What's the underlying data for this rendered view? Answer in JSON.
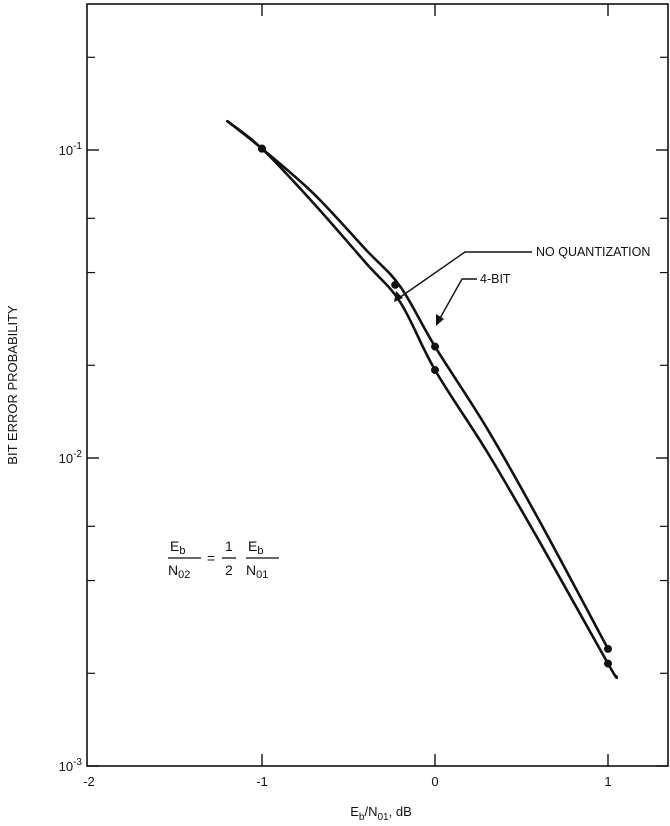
{
  "chart_data": {
    "type": "line",
    "title": "",
    "xlabel": {
      "main": "E",
      "sub1": "b",
      "mid": "/N",
      "sub2": "01",
      "tail": ", dB"
    },
    "ylabel": "BIT ERROR PROBABILITY",
    "xlim": [
      -2,
      1.25
    ],
    "ylim": [
      0.001,
      0.35
    ],
    "yscale": "log",
    "x_ticks": [
      "-2",
      "-1",
      "0",
      "1"
    ],
    "x_tick_values": [
      -2,
      -1,
      0,
      1
    ],
    "y_ticks": [
      {
        "value": 0.1,
        "base": "10",
        "exp": "-1"
      },
      {
        "value": 0.01,
        "base": "10",
        "exp": "-2"
      },
      {
        "value": 0.001,
        "base": "10",
        "exp": "-3"
      }
    ],
    "grid": false,
    "series": [
      {
        "name": "NO QUANTIZATION",
        "x": [
          -1.2,
          -1.0,
          -0.7,
          -0.4,
          -0.2,
          0.0,
          0.3,
          0.6,
          1.0,
          1.05
        ],
        "y": [
          0.124,
          0.101,
          0.067,
          0.043,
          0.032,
          0.0193,
          0.0105,
          0.0054,
          0.00215,
          0.00195
        ],
        "markers_x": [
          -1.0,
          0.0,
          1.0
        ],
        "markers_y": [
          0.101,
          0.0193,
          0.00215
        ]
      },
      {
        "name": "4-BIT",
        "x": [
          -1.2,
          -1.0,
          -0.7,
          -0.4,
          -0.2,
          0.0,
          0.3,
          0.6,
          1.0
        ],
        "y": [
          0.124,
          0.101,
          0.072,
          0.0475,
          0.036,
          0.023,
          0.0125,
          0.0063,
          0.0024
        ],
        "markers_x": [
          -1.0,
          -0.23,
          0.0,
          1.0
        ],
        "markers_y": [
          0.101,
          0.0365,
          0.023,
          0.0024
        ]
      }
    ],
    "annotations": {
      "no_quantization": "NO QUANTIZATION",
      "four_bit": "4-BIT"
    },
    "equation": {
      "lhs_num_main": "E",
      "lhs_num_sub": "b",
      "lhs_den_main": "N",
      "lhs_den_sub": "02",
      "equals": "=",
      "coef_num": "1",
      "coef_den": "2",
      "rhs_num_main": "E",
      "rhs_num_sub": "b",
      "rhs_den_main": "N",
      "rhs_den_sub": "01"
    }
  }
}
